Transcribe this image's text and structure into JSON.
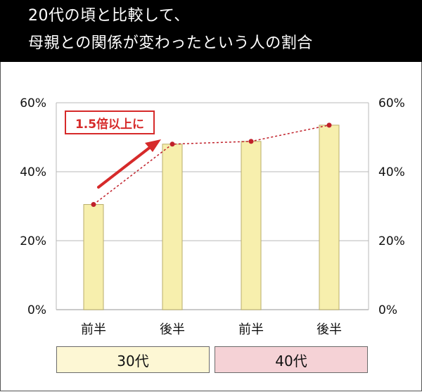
{
  "title": {
    "line1": "20代の頃と比較して、",
    "line2": "母親との関係が変わったという人の割合"
  },
  "annotation": "1.5倍以上に",
  "groups": [
    {
      "label": "30代",
      "color": "#fdf7d4"
    },
    {
      "label": "40代",
      "color": "#f5d2d6"
    }
  ],
  "chart_data": {
    "type": "bar",
    "categories": [
      "前半",
      "後半",
      "前半",
      "後半"
    ],
    "values": [
      30.5,
      48,
      48.8,
      53.5
    ],
    "ylim": [
      0,
      60
    ],
    "yticks": [
      0,
      20,
      40,
      60
    ],
    "tick_labels": [
      "0%",
      "20%",
      "40%",
      "60%"
    ],
    "right_axis_mirror": true,
    "grid": "horizontal",
    "overlay": "dashed red line with dot markers through bar tops",
    "colors": {
      "bar": "#f7efad",
      "bar_stroke": "#b9ae6a",
      "line": "#c0202a",
      "grid": "#b8b8b8"
    }
  }
}
